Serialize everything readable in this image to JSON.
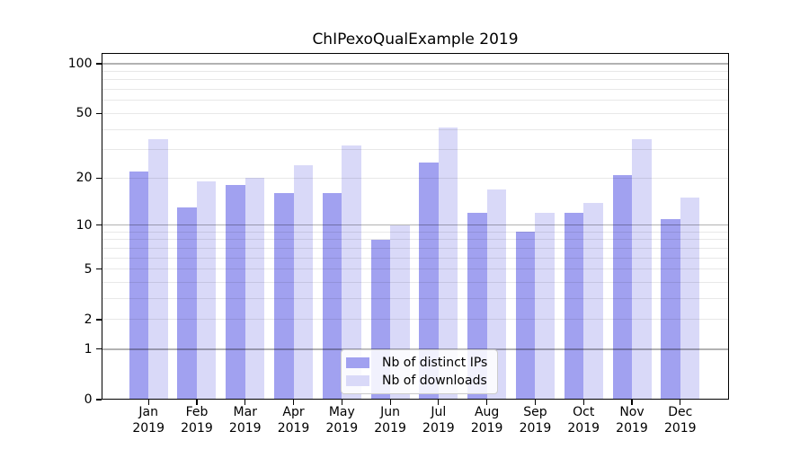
{
  "figure": {
    "title": "ChIPexoQualExample 2019"
  },
  "chart_data": {
    "type": "bar",
    "title": "ChIPexoQualExample 2019",
    "categories": [
      "Jan",
      "Feb",
      "Mar",
      "Apr",
      "May",
      "Jun",
      "Jul",
      "Aug",
      "Sep",
      "Oct",
      "Nov",
      "Dec"
    ],
    "category_year": "2019",
    "series": [
      {
        "name": "Nb of distinct IPs",
        "color": "#a1a1f0",
        "values": [
          22,
          13,
          18,
          16,
          16,
          8,
          25,
          12,
          9,
          12,
          21,
          11
        ]
      },
      {
        "name": "Nb of downloads",
        "color": "#d9d9f8",
        "values": [
          35,
          19,
          20,
          24,
          32,
          10,
          41,
          17,
          12,
          14,
          35,
          15
        ]
      }
    ],
    "xlabel": "",
    "ylabel": "",
    "yscale": "log10(value+1)",
    "ylim": [
      0,
      116
    ],
    "y_tick_values": [
      0,
      1,
      2,
      5,
      10,
      20,
      50,
      100
    ],
    "y_tick_labels": [
      "0",
      "1",
      "2",
      "5",
      "10",
      "20",
      "50",
      "100"
    ],
    "y_major_gridlines": [
      1,
      10,
      100
    ],
    "y_minor_gridlines": [
      2,
      3,
      4,
      5,
      6,
      7,
      8,
      9,
      20,
      30,
      40,
      50,
      60,
      70,
      80,
      90
    ],
    "grid": "horizontal",
    "legend_position": "inside-bottom-center"
  },
  "colors": {
    "background": "#ffffff",
    "axis": "#000000",
    "major_grid": "rgba(0,0,0,0.30)",
    "minor_grid": "rgba(0,0,0,0.09)",
    "legend_border": "#cccccc",
    "legend_background": "rgba(255,255,255,0.85)"
  }
}
